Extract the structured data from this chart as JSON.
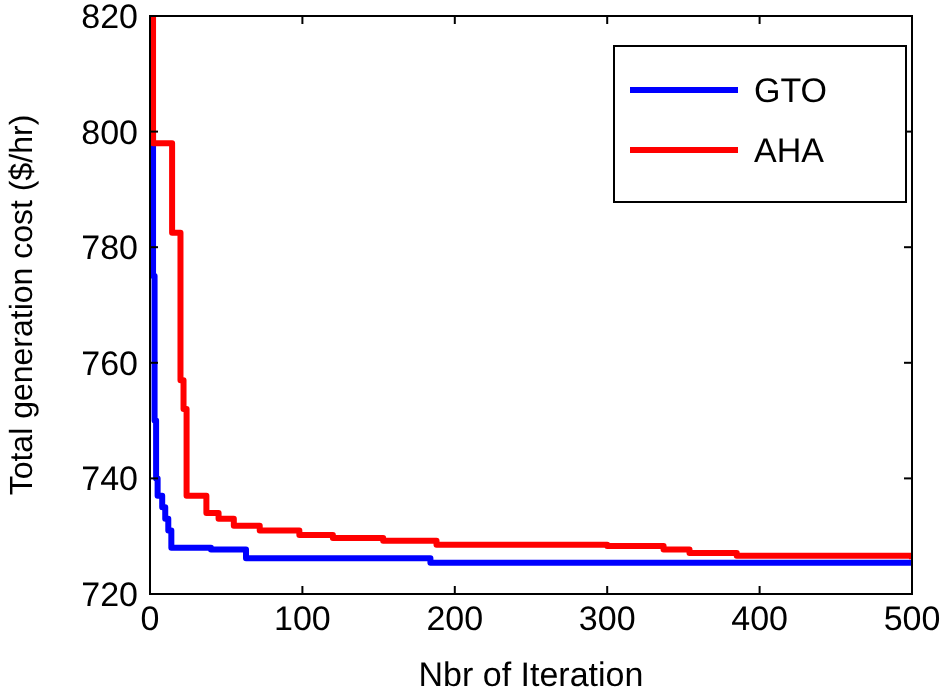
{
  "chart_data": {
    "type": "step",
    "xlabel": "Nbr of Iteration",
    "ylabel": "Total generation cost ($/hr)",
    "xlim": [
      0,
      500
    ],
    "ylim": [
      720,
      820
    ],
    "xticks": [
      0,
      100,
      200,
      300,
      400,
      500
    ],
    "yticks": [
      720,
      740,
      760,
      780,
      800,
      820
    ],
    "grid": false,
    "legend": "top right",
    "line_style": "solid",
    "series": [
      {
        "name": "GTO",
        "color": "#0000ff",
        "x": [
          0,
          1,
          2,
          3,
          4,
          5,
          8,
          10,
          12,
          14,
          40,
          63,
          184,
          500
        ],
        "values": [
          820,
          800,
          775,
          750,
          740,
          737,
          735,
          733,
          731,
          728,
          727.7,
          726.2,
          725.4,
          725.4
        ]
      },
      {
        "name": "AHA",
        "color": "#ff0000",
        "x": [
          0,
          2,
          12,
          14.5,
          17,
          20,
          22,
          24,
          33,
          37,
          45,
          55,
          72,
          98,
          120,
          153,
          188,
          300,
          337,
          354,
          385,
          500
        ],
        "values": [
          820,
          798,
          798,
          782.5,
          782.5,
          757,
          752,
          737,
          737,
          734,
          733,
          731.8,
          731,
          730.2,
          729.7,
          729.2,
          728.5,
          728.3,
          727.7,
          727.1,
          726.6,
          726
        ]
      }
    ]
  }
}
